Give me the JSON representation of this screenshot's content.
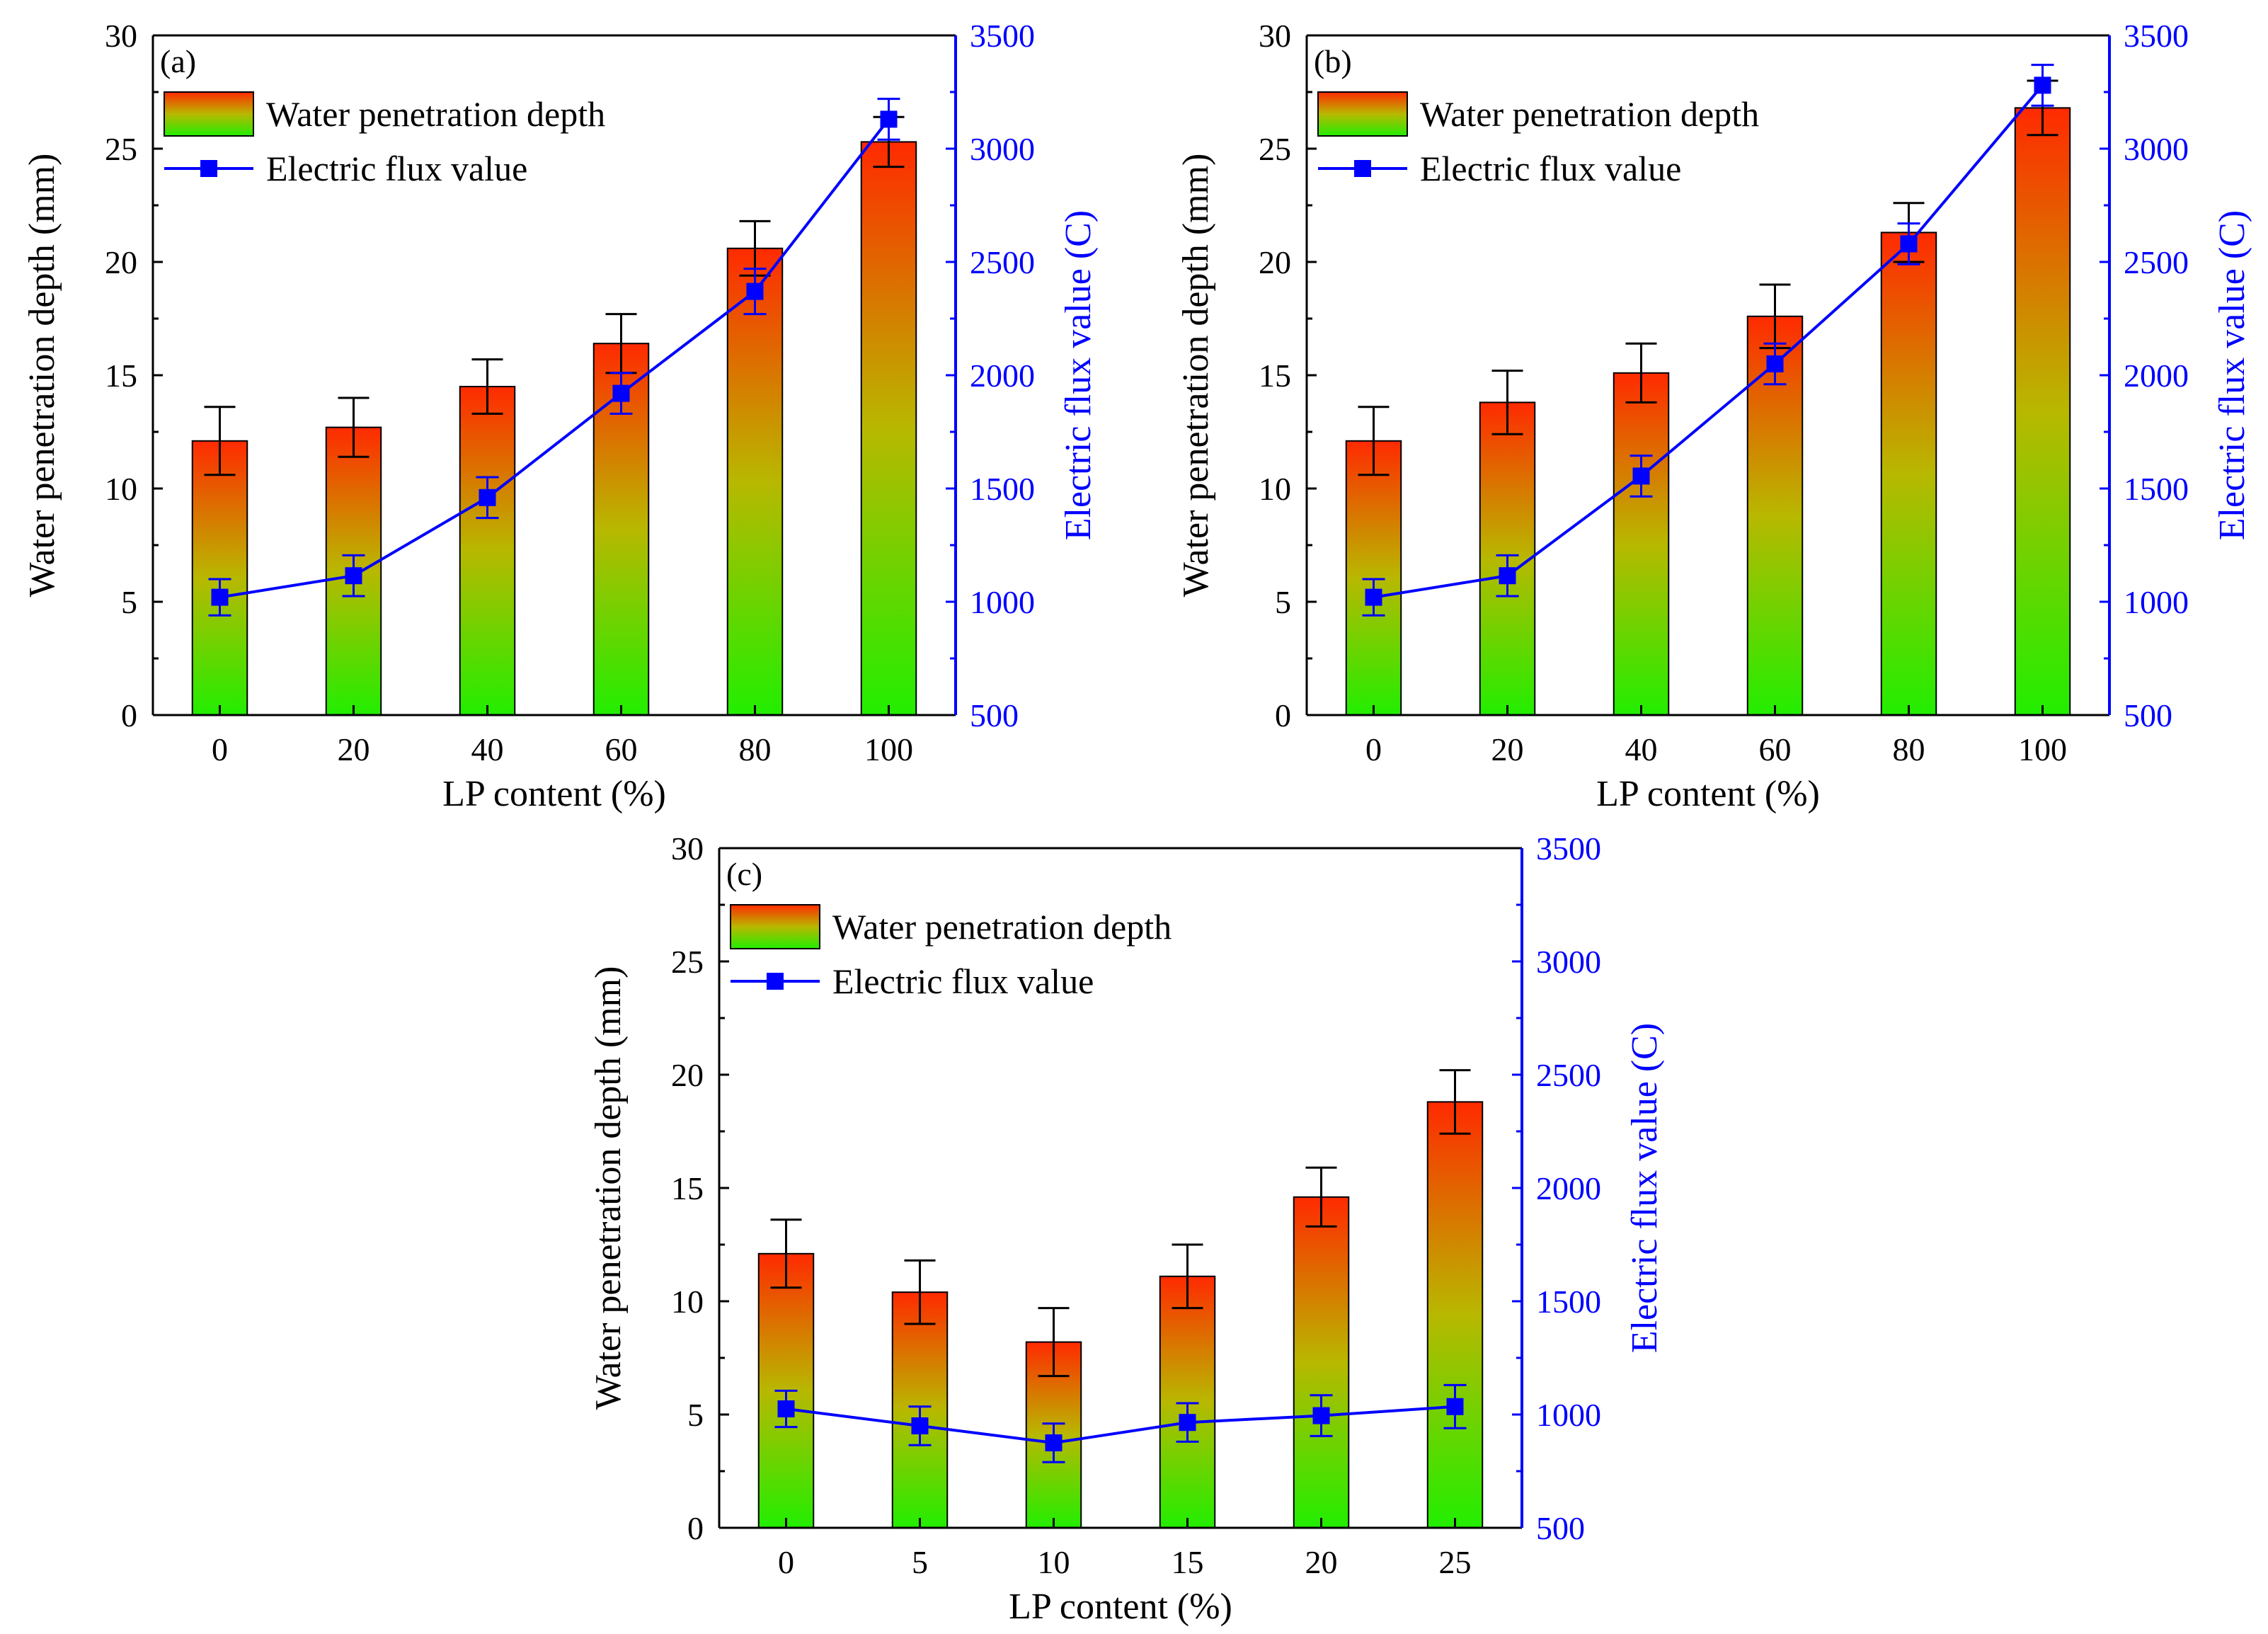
{
  "colors": {
    "bar_top": "#ff2a00",
    "bar_mid": "#b8b800",
    "bar_bottom": "#22ee00",
    "flux_line": "#0000ff",
    "axis_left": "#000000",
    "axis_right": "#0000ff"
  },
  "chart_data": [
    {
      "panel_label": "(a)",
      "type": "bar+line",
      "xlabel": "LP content (%)",
      "ylabel": "Water penetration depth (mm)",
      "y2label": "Electric flux value (C)",
      "ylim": [
        0,
        30
      ],
      "y2lim": [
        500,
        3500
      ],
      "categories": [
        "0",
        "20",
        "40",
        "60",
        "80",
        "100"
      ],
      "yticks": [
        "0",
        "5",
        "10",
        "15",
        "20",
        "25",
        "30"
      ],
      "y2ticks": [
        "500",
        "1000",
        "1500",
        "2000",
        "2500",
        "3000",
        "3500"
      ],
      "legend": [
        "Water penetration depth",
        "Electric flux value"
      ],
      "series": [
        {
          "name": "Water penetration depth",
          "kind": "bar",
          "axis": "left",
          "values": [
            12.1,
            12.7,
            14.5,
            16.4,
            20.6,
            25.3
          ],
          "errors": [
            1.5,
            1.3,
            1.2,
            1.3,
            1.2,
            1.1
          ]
        },
        {
          "name": "Electric flux value",
          "kind": "line",
          "axis": "right",
          "values": [
            1020,
            1115,
            1460,
            1920,
            2370,
            3130
          ],
          "errors": [
            80,
            90,
            90,
            90,
            100,
            90
          ]
        }
      ]
    },
    {
      "panel_label": "(b)",
      "type": "bar+line",
      "xlabel": "LP content (%)",
      "ylabel": "Water penetration depth (mm)",
      "y2label": "Electric flux value (C)",
      "ylim": [
        0,
        30
      ],
      "y2lim": [
        500,
        3500
      ],
      "categories": [
        "0",
        "20",
        "40",
        "60",
        "80",
        "100"
      ],
      "yticks": [
        "0",
        "5",
        "10",
        "15",
        "20",
        "25",
        "30"
      ],
      "y2ticks": [
        "500",
        "1000",
        "1500",
        "2000",
        "2500",
        "3000",
        "3500"
      ],
      "legend": [
        "Water penetration depth",
        "Electric flux value"
      ],
      "series": [
        {
          "name": "Water penetration depth",
          "kind": "bar",
          "axis": "left",
          "values": [
            12.1,
            13.8,
            15.1,
            17.6,
            21.3,
            26.8
          ],
          "errors": [
            1.5,
            1.4,
            1.3,
            1.4,
            1.3,
            1.2
          ]
        },
        {
          "name": "Electric flux value",
          "kind": "line",
          "axis": "right",
          "values": [
            1020,
            1115,
            1555,
            2050,
            2580,
            3280
          ],
          "errors": [
            80,
            90,
            90,
            90,
            90,
            90
          ]
        }
      ]
    },
    {
      "panel_label": "(c)",
      "type": "bar+line",
      "xlabel": "LP content (%)",
      "ylabel": "Water penetration depth (mm)",
      "y2label": "Electric flux value (C)",
      "ylim": [
        0,
        30
      ],
      "y2lim": [
        500,
        3500
      ],
      "categories": [
        "0",
        "5",
        "10",
        "15",
        "20",
        "25"
      ],
      "yticks": [
        "0",
        "5",
        "10",
        "15",
        "20",
        "25",
        "30"
      ],
      "y2ticks": [
        "500",
        "1000",
        "1500",
        "2000",
        "2500",
        "3000",
        "3500"
      ],
      "legend": [
        "Water penetration depth",
        "Electric flux value"
      ],
      "series": [
        {
          "name": "Water penetration depth",
          "kind": "bar",
          "axis": "left",
          "values": [
            12.1,
            10.4,
            8.2,
            11.1,
            14.6,
            18.8
          ],
          "errors": [
            1.5,
            1.4,
            1.5,
            1.4,
            1.3,
            1.4
          ]
        },
        {
          "name": "Electric flux value",
          "kind": "line",
          "axis": "right",
          "values": [
            1025,
            950,
            875,
            965,
            995,
            1035
          ],
          "errors": [
            80,
            85,
            85,
            85,
            90,
            95
          ]
        }
      ]
    }
  ]
}
